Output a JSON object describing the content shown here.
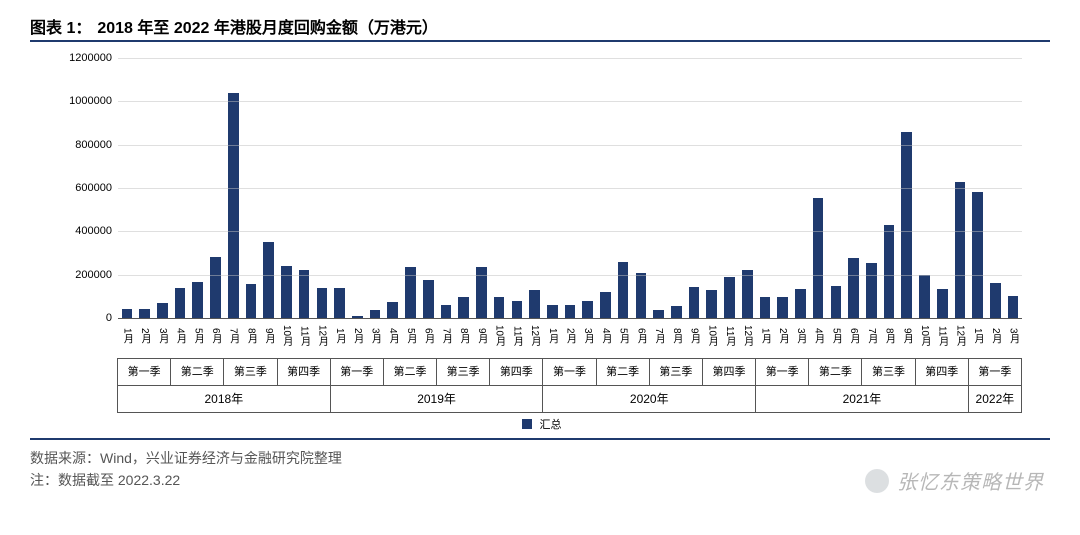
{
  "header": {
    "prefix": "图表 1：",
    "title": "2018 年至 2022 年港股月度回购金额（万港元）"
  },
  "chart": {
    "type": "bar",
    "bar_color": "#1f3a6e",
    "grid_color": "#bfbfbf",
    "baseline_color": "#555555",
    "background_color": "#ffffff",
    "y": {
      "min": 0,
      "max": 1200000,
      "step": 200000,
      "ticks": [
        0,
        200000,
        400000,
        600000,
        800000,
        1000000,
        1200000
      ],
      "fontsize": 11
    },
    "x_label_fontsize": 10,
    "quarter_fontsize": 11,
    "year_fontsize": 12,
    "legend": {
      "label": "汇总",
      "swatch_color": "#1f3a6e"
    },
    "quarter_names": [
      "第一季",
      "第二季",
      "第三季",
      "第四季"
    ],
    "data": [
      {
        "year": "2018年",
        "months": [
          {
            "m": "1月",
            "v": 40000
          },
          {
            "m": "2月",
            "v": 40000
          },
          {
            "m": "3月",
            "v": 70000
          },
          {
            "m": "4月",
            "v": 140000
          },
          {
            "m": "5月",
            "v": 165000
          },
          {
            "m": "6月",
            "v": 280000
          },
          {
            "m": "7月",
            "v": 1040000
          },
          {
            "m": "8月",
            "v": 155000
          },
          {
            "m": "9月",
            "v": 350000
          },
          {
            "m": "10月",
            "v": 240000
          },
          {
            "m": "11月",
            "v": 220000
          },
          {
            "m": "12月",
            "v": 140000
          }
        ]
      },
      {
        "year": "2019年",
        "months": [
          {
            "m": "1月",
            "v": 140000
          },
          {
            "m": "2月",
            "v": 10000
          },
          {
            "m": "3月",
            "v": 35000
          },
          {
            "m": "4月",
            "v": 75000
          },
          {
            "m": "5月",
            "v": 235000
          },
          {
            "m": "6月",
            "v": 175000
          },
          {
            "m": "7月",
            "v": 60000
          },
          {
            "m": "8月",
            "v": 95000
          },
          {
            "m": "9月",
            "v": 235000
          },
          {
            "m": "10月",
            "v": 95000
          },
          {
            "m": "11月",
            "v": 80000
          },
          {
            "m": "12月",
            "v": 130000
          }
        ]
      },
      {
        "year": "2020年",
        "months": [
          {
            "m": "1月",
            "v": 60000
          },
          {
            "m": "2月",
            "v": 60000
          },
          {
            "m": "3月",
            "v": 80000
          },
          {
            "m": "4月",
            "v": 120000
          },
          {
            "m": "5月",
            "v": 260000
          },
          {
            "m": "6月",
            "v": 210000
          },
          {
            "m": "7月",
            "v": 35000
          },
          {
            "m": "8月",
            "v": 55000
          },
          {
            "m": "9月",
            "v": 145000
          },
          {
            "m": "10月",
            "v": 130000
          },
          {
            "m": "11月",
            "v": 190000
          },
          {
            "m": "12月",
            "v": 220000
          }
        ]
      },
      {
        "year": "2021年",
        "months": [
          {
            "m": "1月",
            "v": 95000
          },
          {
            "m": "2月",
            "v": 95000
          },
          {
            "m": "3月",
            "v": 135000
          },
          {
            "m": "4月",
            "v": 555000
          },
          {
            "m": "5月",
            "v": 150000
          },
          {
            "m": "6月",
            "v": 275000
          },
          {
            "m": "7月",
            "v": 255000
          },
          {
            "m": "8月",
            "v": 430000
          },
          {
            "m": "9月",
            "v": 860000
          },
          {
            "m": "10月",
            "v": 200000
          },
          {
            "m": "11月",
            "v": 135000
          },
          {
            "m": "12月",
            "v": 630000
          }
        ]
      },
      {
        "year": "2022年",
        "months": [
          {
            "m": "1月",
            "v": 580000
          },
          {
            "m": "2月",
            "v": 160000
          },
          {
            "m": "3月",
            "v": 100000
          }
        ]
      }
    ]
  },
  "footer": {
    "source": "数据来源：Wind，兴业证券经济与金融研究院整理",
    "note": "注：数据截至 2022.3.22"
  },
  "watermark": "张忆东策略世界"
}
